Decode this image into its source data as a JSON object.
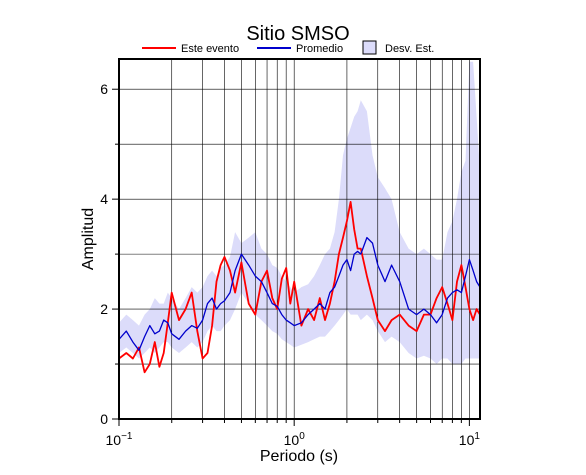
{
  "chart_data": {
    "type": "line",
    "title": "Sitio SMSO",
    "xlabel": "Periodo (s)",
    "ylabel": "Amplitud",
    "x_scale": "log",
    "xlim": [
      0.1,
      11.5
    ],
    "ylim": [
      0,
      6.55
    ],
    "grid": true,
    "legend_position": "top",
    "x_ticks": [
      {
        "value": 0.1,
        "base": "10",
        "exp": "−1"
      },
      {
        "value": 1,
        "base": "10",
        "exp": "0"
      },
      {
        "value": 10,
        "base": "10",
        "exp": "1"
      }
    ],
    "y_ticks": [
      {
        "value": 0,
        "label": "0"
      },
      {
        "value": 2,
        "label": "2"
      },
      {
        "value": 4,
        "label": "4"
      },
      {
        "value": 6,
        "label": "6"
      }
    ],
    "legend": {
      "event_label": "Este evento",
      "mean_label": "Promedio",
      "std_label": "Desv. Est."
    },
    "colors": {
      "event": "#ff0000",
      "mean": "#0000cc",
      "std_fill": "#dcdcfa",
      "grid": "#000000"
    },
    "series": [
      {
        "name": "Este evento",
        "x": [
          0.1,
          0.11,
          0.12,
          0.13,
          0.14,
          0.15,
          0.16,
          0.17,
          0.18,
          0.19,
          0.2,
          0.22,
          0.24,
          0.26,
          0.28,
          0.3,
          0.32,
          0.34,
          0.36,
          0.38,
          0.4,
          0.43,
          0.46,
          0.5,
          0.55,
          0.6,
          0.65,
          0.7,
          0.75,
          0.8,
          0.85,
          0.9,
          0.95,
          1.0,
          1.1,
          1.2,
          1.3,
          1.4,
          1.5,
          1.6,
          1.7,
          1.8,
          1.9,
          2.0,
          2.1,
          2.2,
          2.3,
          2.4,
          2.6,
          2.8,
          3.0,
          3.3,
          3.6,
          4.0,
          4.5,
          5.0,
          5.5,
          6.0,
          6.5,
          7.0,
          7.5,
          8.0,
          8.5,
          9.0,
          9.5,
          10.0,
          10.5,
          11.0,
          11.5
        ],
        "values": [
          1.1,
          1.2,
          1.1,
          1.3,
          0.85,
          1.0,
          1.4,
          0.95,
          1.2,
          1.75,
          2.3,
          1.8,
          2.0,
          2.3,
          1.6,
          1.1,
          1.2,
          1.7,
          2.5,
          2.8,
          2.95,
          2.7,
          2.3,
          2.85,
          2.1,
          1.9,
          2.5,
          2.7,
          2.2,
          2.0,
          2.55,
          2.75,
          2.1,
          2.5,
          1.7,
          2.0,
          1.8,
          2.2,
          1.8,
          2.1,
          2.5,
          3.0,
          3.3,
          3.6,
          3.95,
          3.45,
          3.1,
          3.1,
          2.6,
          2.2,
          1.8,
          1.6,
          1.8,
          1.9,
          1.7,
          1.6,
          1.9,
          1.9,
          2.2,
          2.4,
          2.1,
          1.8,
          2.5,
          2.8,
          2.4,
          2.0,
          1.8,
          2.0,
          1.9
        ]
      },
      {
        "name": "Promedio",
        "x": [
          0.1,
          0.11,
          0.12,
          0.13,
          0.14,
          0.15,
          0.16,
          0.17,
          0.18,
          0.19,
          0.2,
          0.22,
          0.24,
          0.26,
          0.28,
          0.3,
          0.32,
          0.34,
          0.36,
          0.38,
          0.4,
          0.43,
          0.46,
          0.5,
          0.55,
          0.6,
          0.65,
          0.7,
          0.75,
          0.8,
          0.85,
          0.9,
          0.95,
          1.0,
          1.1,
          1.2,
          1.3,
          1.4,
          1.5,
          1.6,
          1.7,
          1.8,
          1.9,
          2.0,
          2.1,
          2.2,
          2.3,
          2.4,
          2.6,
          2.8,
          3.0,
          3.3,
          3.6,
          4.0,
          4.5,
          5.0,
          5.5,
          6.0,
          6.5,
          7.0,
          7.5,
          8.0,
          8.5,
          9.0,
          9.5,
          10.0,
          10.5,
          11.0,
          11.5
        ],
        "values": [
          1.45,
          1.6,
          1.4,
          1.25,
          1.5,
          1.7,
          1.55,
          1.6,
          1.8,
          1.75,
          1.55,
          1.45,
          1.6,
          1.7,
          1.65,
          1.8,
          2.1,
          2.2,
          2.0,
          2.1,
          2.15,
          2.3,
          2.7,
          3.0,
          2.8,
          2.6,
          2.5,
          2.3,
          2.1,
          2.05,
          1.9,
          1.8,
          1.75,
          1.7,
          1.75,
          1.9,
          2.0,
          2.1,
          2.0,
          2.3,
          2.4,
          2.6,
          2.8,
          2.9,
          2.7,
          3.0,
          3.05,
          3.0,
          3.3,
          3.2,
          2.8,
          2.5,
          2.8,
          2.5,
          2.0,
          1.9,
          2.0,
          1.9,
          1.75,
          1.9,
          2.2,
          2.3,
          2.35,
          2.3,
          2.6,
          2.9,
          2.7,
          2.5,
          2.4
        ]
      }
    ],
    "std_band": {
      "name": "Desv. Est.",
      "x": [
        0.1,
        0.11,
        0.12,
        0.13,
        0.14,
        0.15,
        0.16,
        0.17,
        0.18,
        0.19,
        0.2,
        0.22,
        0.24,
        0.26,
        0.28,
        0.3,
        0.32,
        0.34,
        0.36,
        0.38,
        0.4,
        0.43,
        0.46,
        0.5,
        0.55,
        0.6,
        0.65,
        0.7,
        0.75,
        0.8,
        0.85,
        0.9,
        0.95,
        1.0,
        1.1,
        1.2,
        1.3,
        1.4,
        1.5,
        1.6,
        1.7,
        1.8,
        1.9,
        2.0,
        2.1,
        2.2,
        2.3,
        2.4,
        2.6,
        2.8,
        3.0,
        3.3,
        3.6,
        4.0,
        4.5,
        5.0,
        5.5,
        6.0,
        6.5,
        7.0,
        7.5,
        8.0,
        8.5,
        9.0,
        9.5,
        10.0,
        10.5,
        11.0,
        11.5
      ],
      "upper": [
        1.75,
        1.9,
        1.8,
        1.7,
        1.9,
        2.0,
        2.2,
        2.1,
        2.1,
        2.3,
        2.2,
        2.0,
        2.2,
        2.4,
        2.3,
        2.4,
        2.6,
        2.7,
        2.6,
        2.75,
        2.8,
        2.95,
        3.4,
        3.2,
        3.3,
        3.4,
        3.1,
        3.0,
        2.8,
        2.75,
        2.6,
        2.5,
        2.4,
        2.3,
        2.4,
        2.45,
        2.6,
        2.8,
        3.0,
        3.1,
        3.4,
        4.0,
        4.8,
        5.1,
        5.3,
        5.5,
        5.6,
        5.8,
        5.6,
        4.8,
        4.4,
        4.2,
        4.0,
        3.4,
        3.1,
        3.0,
        3.1,
        3.0,
        2.9,
        2.9,
        3.4,
        3.6,
        4.0,
        4.5,
        4.7,
        6.5,
        6.5,
        5.5,
        4.5
      ],
      "lower": [
        1.2,
        1.3,
        1.2,
        1.1,
        1.2,
        1.3,
        1.2,
        1.3,
        1.4,
        1.4,
        1.3,
        1.2,
        1.3,
        1.4,
        1.3,
        1.4,
        1.6,
        1.7,
        1.6,
        1.6,
        1.7,
        1.8,
        2.0,
        2.3,
        2.1,
        1.9,
        1.8,
        1.7,
        1.6,
        1.55,
        1.45,
        1.4,
        1.35,
        1.3,
        1.35,
        1.4,
        1.45,
        1.5,
        1.5,
        1.6,
        1.7,
        1.8,
        1.9,
        2.0,
        1.9,
        1.9,
        1.9,
        1.8,
        1.9,
        1.8,
        1.6,
        1.4,
        1.5,
        1.4,
        1.2,
        1.1,
        1.15,
        1.1,
        1.0,
        1.1,
        1.1,
        1.0,
        1.0,
        1.0,
        1.1,
        1.1,
        1.1,
        1.1,
        1.1
      ]
    }
  }
}
